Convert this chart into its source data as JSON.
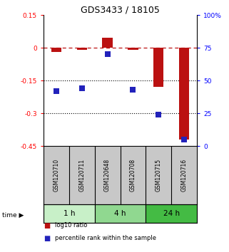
{
  "title": "GDS3433 / 18105",
  "samples": [
    "GSM120710",
    "GSM120711",
    "GSM120648",
    "GSM120708",
    "GSM120715",
    "GSM120716"
  ],
  "groups": [
    {
      "label": "1 h",
      "indices": [
        0,
        1
      ],
      "color": "#c8f0c8"
    },
    {
      "label": "4 h",
      "indices": [
        2,
        3
      ],
      "color": "#90d890"
    },
    {
      "label": "24 h",
      "indices": [
        4,
        5
      ],
      "color": "#44bb44"
    }
  ],
  "log10_ratio": [
    -0.02,
    -0.01,
    0.045,
    -0.01,
    -0.18,
    -0.42
  ],
  "percentile_rank": [
    42,
    44,
    70,
    43,
    24,
    5
  ],
  "ylim_left": [
    -0.45,
    0.15
  ],
  "ylim_right": [
    0,
    100
  ],
  "yticks_left": [
    0.15,
    0.0,
    -0.15,
    -0.3,
    -0.45
  ],
  "yticks_right": [
    100,
    75,
    50,
    25,
    0
  ],
  "hlines": [
    -0.15,
    -0.3
  ],
  "bar_color": "#bb1111",
  "dot_color": "#2222bb",
  "bar_width": 0.4,
  "dot_size": 28,
  "legend_items": [
    "log10 ratio",
    "percentile rank within the sample"
  ],
  "sample_bg": "#c8c8c8"
}
